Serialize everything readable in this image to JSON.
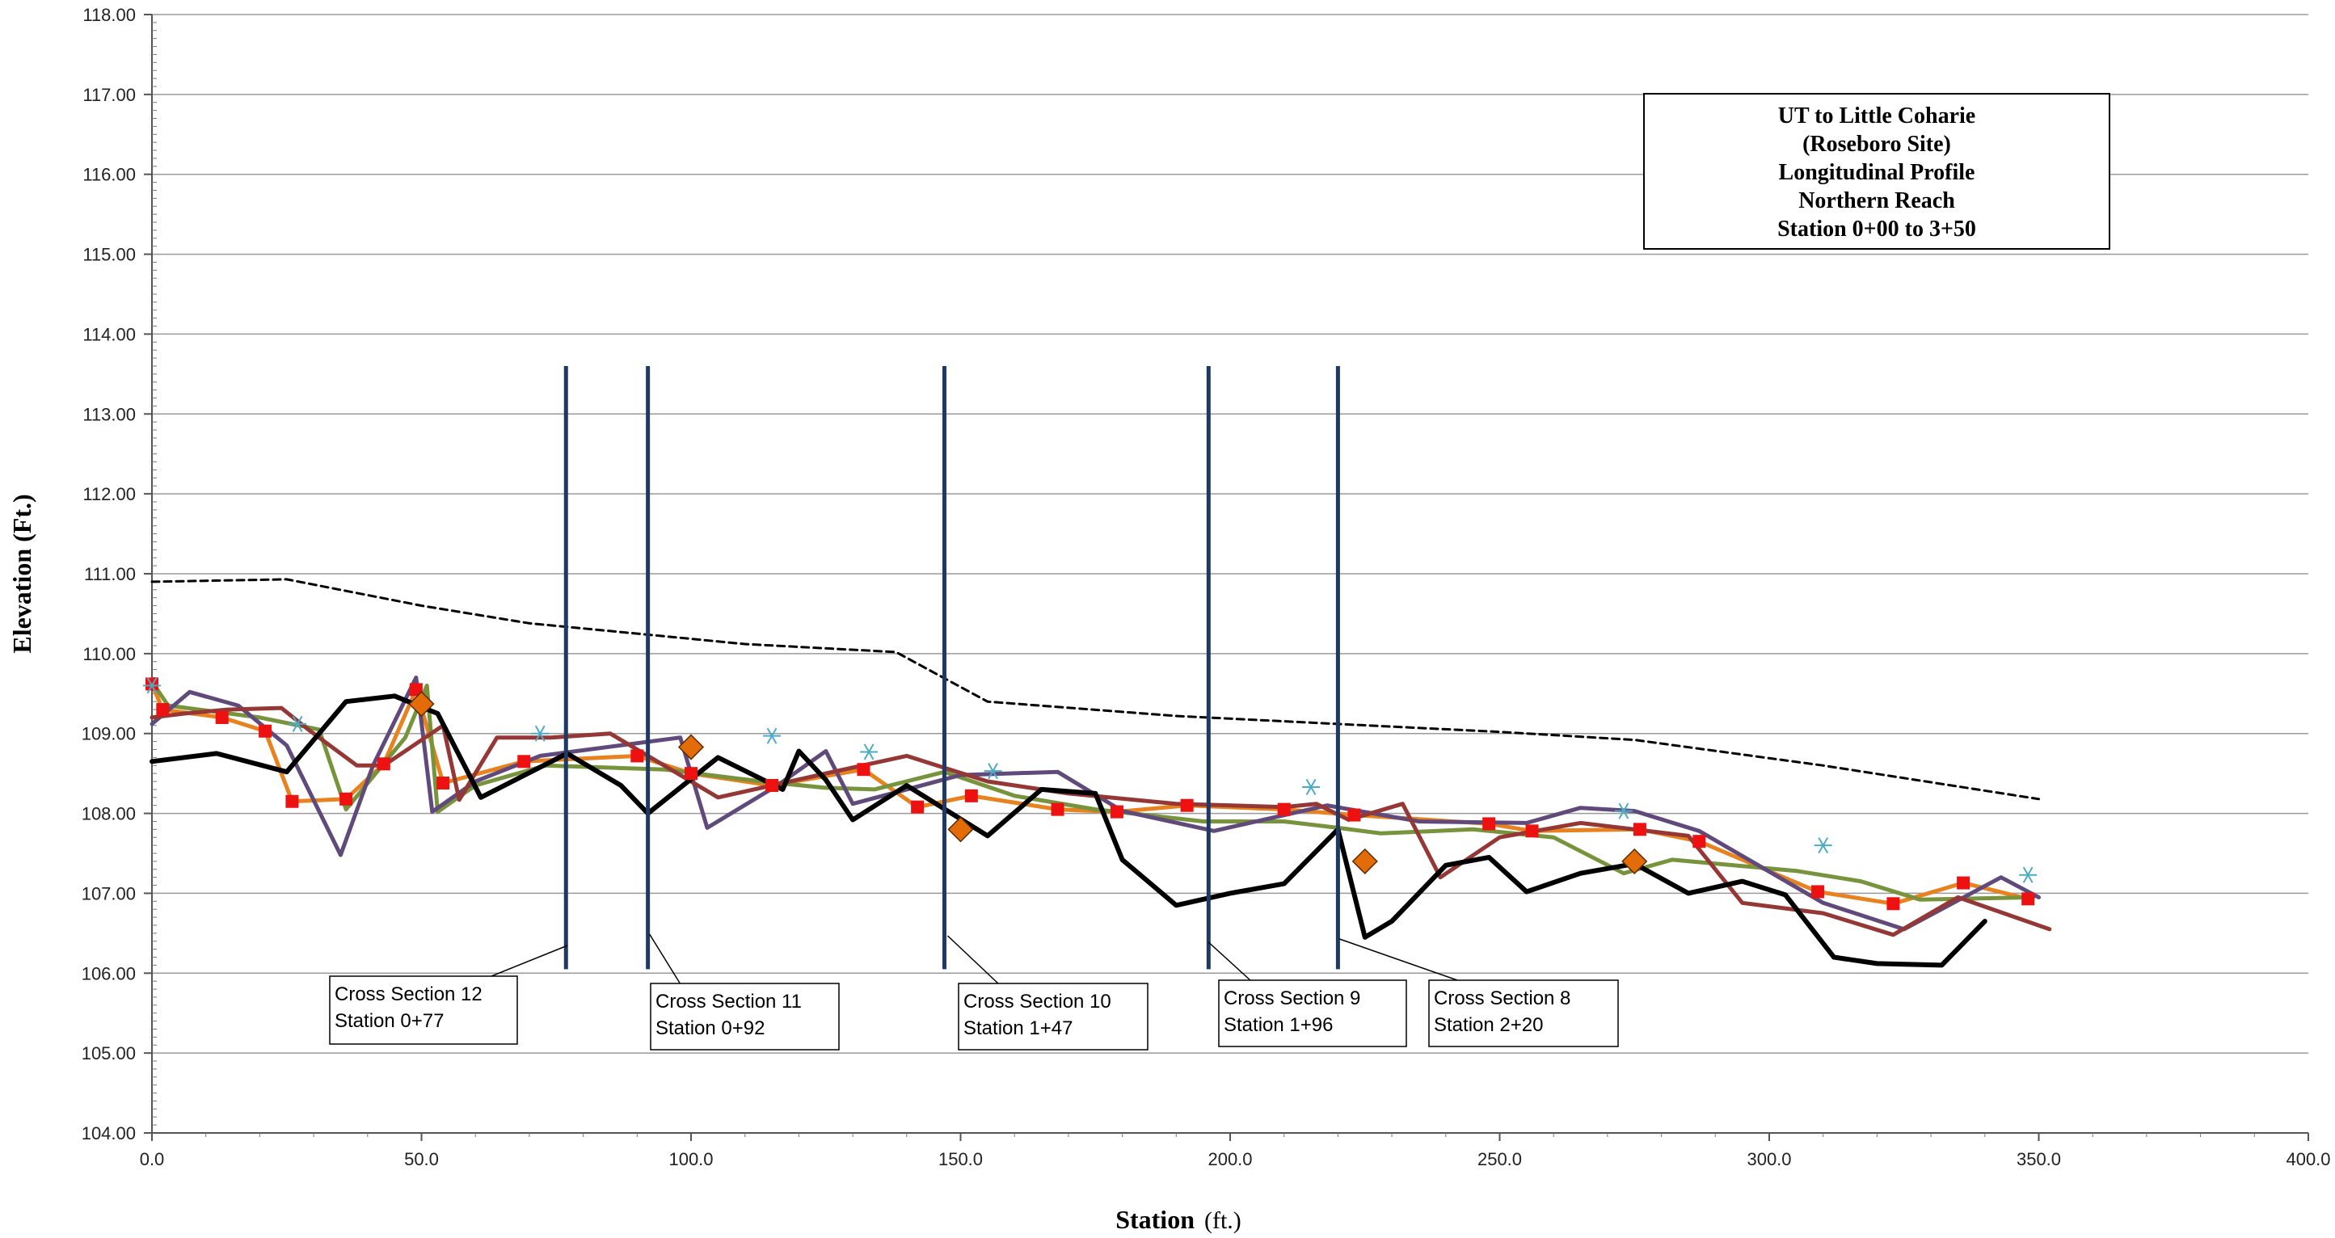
{
  "chart_data": {
    "type": "line",
    "title_lines": [
      "UT to Little Coharie",
      "(Roseboro Site)",
      "Longitudinal Profile",
      "Northern Reach",
      "Station 0+00 to 3+50"
    ],
    "xlabel": "Station",
    "xlabel_unit": "(ft.)",
    "ylabel": "Elevation (Ft.)",
    "xlim": [
      0,
      400
    ],
    "ylim": [
      104,
      118
    ],
    "x_ticks": [
      "0.0",
      "50.0",
      "100.0",
      "150.0",
      "200.0",
      "250.0",
      "300.0",
      "350.0",
      "400.0"
    ],
    "y_ticks": [
      "104.00",
      "105.00",
      "106.00",
      "107.00",
      "108.00",
      "109.00",
      "110.00",
      "111.00",
      "112.00",
      "113.00",
      "114.00",
      "115.00",
      "116.00",
      "117.00",
      "118.00"
    ],
    "grid": "horizontal",
    "colors": {
      "orange": "#e8821e",
      "red_marker": "#ee1111",
      "green": "#77933c",
      "purple": "#604a7b",
      "darkred": "#953735",
      "black": "#000000",
      "navy": "#1f3864",
      "cyan": "#4bacc6",
      "diamond": "#e36c09"
    },
    "series": [
      {
        "style": "dashed",
        "color": "black",
        "x": [
          0,
          25,
          50,
          70,
          90,
          110,
          138,
          155,
          190,
          220,
          250,
          275,
          310,
          350
        ],
        "y": [
          110.9,
          110.93,
          110.6,
          110.38,
          110.25,
          110.12,
          110.02,
          109.4,
          109.22,
          109.12,
          109.02,
          108.92,
          108.6,
          108.18
        ]
      },
      {
        "style": "solid",
        "color": "orange",
        "marker": "red_square",
        "x": [
          0,
          2,
          13,
          21,
          26,
          36,
          43,
          49,
          54,
          69,
          90,
          100,
          115,
          132,
          142,
          152,
          168,
          179,
          192,
          210,
          223,
          248,
          256,
          276,
          287,
          309,
          323,
          336,
          348
        ],
        "y": [
          109.62,
          109.3,
          109.2,
          109.03,
          108.15,
          108.18,
          108.62,
          109.55,
          108.38,
          108.65,
          108.72,
          108.5,
          108.35,
          108.55,
          108.08,
          108.22,
          108.05,
          108.02,
          108.1,
          108.05,
          107.98,
          107.87,
          107.78,
          107.8,
          107.65,
          107.02,
          106.87,
          107.13,
          106.93
        ]
      },
      {
        "style": "solid",
        "color": "green",
        "x": [
          0,
          3,
          20,
          31,
          36,
          47,
          51,
          53,
          60,
          73,
          95,
          113,
          125,
          134,
          147,
          160,
          175,
          195,
          210,
          220,
          228,
          245,
          260,
          273,
          282,
          305,
          317,
          328,
          349
        ],
        "y": [
          109.65,
          109.35,
          109.2,
          109.05,
          108.05,
          108.95,
          109.6,
          108.02,
          108.35,
          108.6,
          108.55,
          108.4,
          108.32,
          108.3,
          108.52,
          108.22,
          108.05,
          107.9,
          107.9,
          107.82,
          107.75,
          107.8,
          107.7,
          107.25,
          107.42,
          107.28,
          107.15,
          106.92,
          106.95
        ]
      },
      {
        "style": "solid",
        "color": "purple",
        "x": [
          0,
          7,
          16,
          25,
          35,
          41,
          49,
          52,
          60,
          72,
          98,
          103,
          116,
          125,
          130,
          150,
          168,
          180,
          197,
          218,
          235,
          255,
          265,
          275,
          287,
          310,
          325,
          343,
          350
        ],
        "y": [
          109.12,
          109.52,
          109.35,
          108.85,
          107.48,
          108.6,
          109.7,
          108.02,
          108.4,
          108.72,
          108.95,
          107.82,
          108.35,
          108.78,
          108.12,
          108.48,
          108.52,
          108.03,
          107.78,
          108.1,
          107.9,
          107.88,
          108.07,
          108.03,
          107.78,
          106.88,
          106.55,
          107.2,
          106.95
        ]
      },
      {
        "style": "solid",
        "color": "darkred",
        "x": [
          0,
          6,
          14,
          24,
          29,
          38,
          43,
          54,
          57,
          64,
          74,
          85,
          105,
          125,
          140,
          155,
          170,
          190,
          210,
          216,
          222,
          232,
          239,
          250,
          265,
          285,
          295,
          310,
          323,
          335,
          352
        ],
        "y": [
          109.2,
          109.25,
          109.3,
          109.32,
          109.05,
          108.6,
          108.6,
          109.1,
          108.17,
          108.95,
          108.95,
          109.0,
          108.2,
          108.5,
          108.72,
          108.4,
          108.25,
          108.12,
          108.08,
          108.12,
          107.92,
          108.12,
          107.2,
          107.7,
          107.88,
          107.72,
          106.88,
          106.75,
          106.48,
          106.95,
          106.55
        ]
      },
      {
        "style": "solid-thick",
        "color": "black",
        "x": [
          0,
          12,
          25,
          36,
          45,
          53,
          61,
          77,
          87,
          92,
          105,
          117,
          120,
          125,
          130,
          140,
          155,
          165,
          175,
          180,
          190,
          200,
          210,
          220,
          225,
          230,
          240,
          248,
          255,
          265,
          275,
          285,
          295,
          303,
          312,
          320,
          332,
          340
        ],
        "y": [
          108.65,
          108.75,
          108.52,
          109.4,
          109.47,
          109.25,
          108.2,
          108.75,
          108.35,
          108.0,
          108.7,
          108.3,
          108.78,
          108.42,
          107.92,
          108.35,
          107.72,
          108.3,
          108.25,
          107.42,
          106.85,
          107.0,
          107.12,
          107.8,
          106.45,
          106.65,
          107.35,
          107.45,
          107.02,
          107.25,
          107.37,
          107.0,
          107.15,
          106.98,
          106.2,
          106.12,
          106.1,
          106.65
        ]
      }
    ],
    "diamond_points": {
      "x": [
        50,
        100,
        150,
        225,
        275
      ],
      "y": [
        109.37,
        108.83,
        107.8,
        107.4,
        107.4
      ]
    },
    "star_points": {
      "x": [
        0,
        27,
        72,
        115,
        133,
        156,
        215,
        273,
        310,
        348
      ],
      "y": [
        109.6,
        109.12,
        109.0,
        108.97,
        108.77,
        108.53,
        108.33,
        108.03,
        107.6,
        107.23
      ]
    },
    "cross_sections": [
      {
        "station_x": 76.8,
        "top": 113.6,
        "bottom": 106.05,
        "label": "Cross Section 12",
        "station": "Station  0+77"
      },
      {
        "station_x": 92.0,
        "top": 113.6,
        "bottom": 106.05,
        "label": "Cross Section 11",
        "station": "Station  0+92"
      },
      {
        "station_x": 147.0,
        "top": 113.6,
        "bottom": 106.05,
        "label": "Cross Section 10",
        "station": "Station  1+47"
      },
      {
        "station_x": 196.0,
        "top": 113.6,
        "bottom": 106.05,
        "label": "Cross Section 9",
        "station": "Station  1+96"
      },
      {
        "station_x": 220.0,
        "top": 113.6,
        "bottom": 106.05,
        "label": "Cross Section 8",
        "station": "Station  2+20"
      }
    ]
  }
}
